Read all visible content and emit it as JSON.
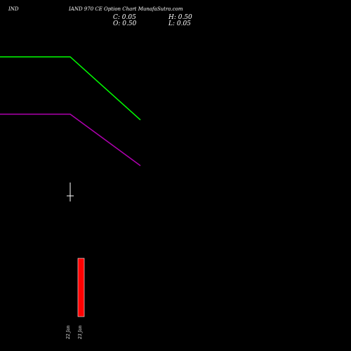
{
  "header": {
    "symbol": "IND",
    "title": "IAND 970  CE Option  Chart MunafaSutra.com"
  },
  "ohlc": {
    "close_label": "C: 0.05",
    "high_label": "H: 0.50",
    "open_label": "O: 0.50",
    "low_label": "L: 0.05"
  },
  "chart_data": {
    "type": "line",
    "price_range": [
      0,
      0.5
    ],
    "series": [
      {
        "color": "#00ff00",
        "values": [
          0.5,
          0.5,
          0.28
        ]
      },
      {
        "color": "#b000b0",
        "values": [
          0.3,
          0.3,
          0.12
        ]
      }
    ],
    "candles": [
      {
        "open": 0.5,
        "high": 0.5,
        "low": 0.05,
        "close": 0.05
      }
    ],
    "volume_bars": [
      {
        "value": 1,
        "color": "#ff0000"
      }
    ],
    "date_labels": [
      "22 Jan",
      "23 Jan"
    ]
  }
}
